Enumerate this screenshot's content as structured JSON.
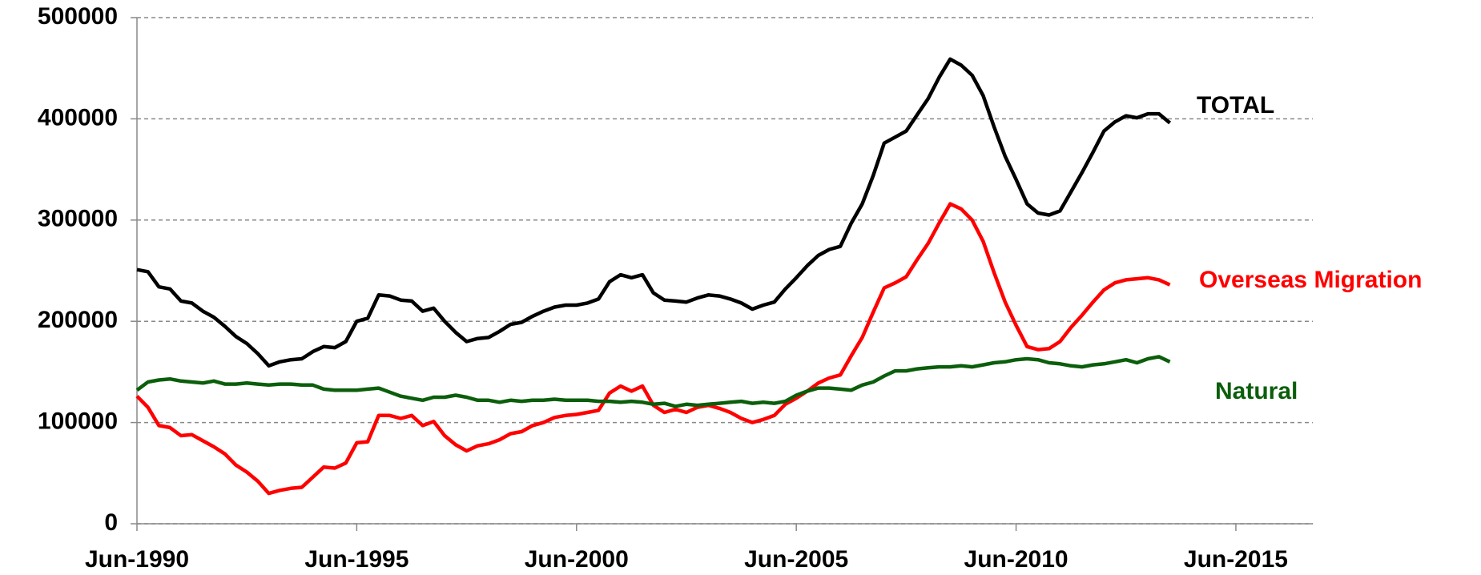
{
  "chart_data": {
    "type": "line",
    "x": [
      "Jun-1990",
      "Sep-1990",
      "Dec-1990",
      "Mar-1991",
      "Jun-1991",
      "Sep-1991",
      "Dec-1991",
      "Mar-1992",
      "Jun-1992",
      "Sep-1992",
      "Dec-1992",
      "Mar-1993",
      "Jun-1993",
      "Sep-1993",
      "Dec-1993",
      "Mar-1994",
      "Jun-1994",
      "Sep-1994",
      "Dec-1994",
      "Mar-1995",
      "Jun-1995",
      "Sep-1995",
      "Dec-1995",
      "Mar-1996",
      "Jun-1996",
      "Sep-1996",
      "Dec-1996",
      "Mar-1997",
      "Jun-1997",
      "Sep-1997",
      "Dec-1997",
      "Mar-1998",
      "Jun-1998",
      "Sep-1998",
      "Dec-1998",
      "Mar-1999",
      "Jun-1999",
      "Sep-1999",
      "Dec-1999",
      "Mar-2000",
      "Jun-2000",
      "Sep-2000",
      "Dec-2000",
      "Mar-2001",
      "Jun-2001",
      "Sep-2001",
      "Dec-2001",
      "Mar-2002",
      "Jun-2002",
      "Sep-2002",
      "Dec-2002",
      "Mar-2003",
      "Jun-2003",
      "Sep-2003",
      "Dec-2003",
      "Mar-2004",
      "Jun-2004",
      "Sep-2004",
      "Dec-2004",
      "Mar-2005",
      "Jun-2005",
      "Sep-2005",
      "Dec-2005",
      "Mar-2006",
      "Jun-2006",
      "Sep-2006",
      "Dec-2006",
      "Mar-2007",
      "Jun-2007",
      "Sep-2007",
      "Dec-2007",
      "Mar-2008",
      "Jun-2008",
      "Sep-2008",
      "Dec-2008",
      "Mar-2009",
      "Jun-2009",
      "Sep-2009",
      "Dec-2009",
      "Mar-2010",
      "Jun-2010",
      "Sep-2010",
      "Dec-2010",
      "Mar-2011",
      "Jun-2011",
      "Sep-2011",
      "Dec-2011",
      "Mar-2012",
      "Jun-2012",
      "Sep-2012",
      "Dec-2012",
      "Mar-2013",
      "Jun-2013",
      "Sep-2013",
      "Dec-2013"
    ],
    "series": [
      {
        "name": "TOTAL",
        "color": "#000000",
        "values": [
          251000,
          249000,
          234000,
          232000,
          220000,
          218000,
          210000,
          204000,
          195000,
          185000,
          178000,
          168000,
          156000,
          160000,
          162000,
          163000,
          170000,
          175000,
          174000,
          180000,
          200000,
          203000,
          226000,
          225000,
          221000,
          220000,
          210000,
          213000,
          200000,
          189000,
          180000,
          183000,
          184000,
          190000,
          197000,
          199000,
          205000,
          210000,
          214000,
          216000,
          216000,
          218000,
          222000,
          239000,
          246000,
          243000,
          246000,
          228000,
          221000,
          220000,
          219000,
          223000,
          226000,
          225000,
          222000,
          218000,
          212000,
          216000,
          219000,
          232000,
          243000,
          255000,
          265000,
          271000,
          274000,
          297000,
          316000,
          344000,
          376000,
          382000,
          388000,
          404000,
          420000,
          441000,
          459000,
          453000,
          443000,
          423000,
          392000,
          363000,
          340000,
          316000,
          307000,
          305000,
          309000,
          328000,
          347000,
          367000,
          388000,
          397000,
          403000,
          401000,
          405000,
          405000,
          396000
        ]
      },
      {
        "name": "Overseas Migration",
        "color": "#ff0000",
        "values": [
          126000,
          115000,
          97000,
          95000,
          87000,
          88000,
          82000,
          76000,
          69000,
          58000,
          51000,
          42000,
          30000,
          33000,
          35000,
          36000,
          46000,
          56000,
          55000,
          60000,
          80000,
          81000,
          107000,
          107000,
          104000,
          107000,
          97000,
          101000,
          87000,
          78000,
          72000,
          77000,
          79000,
          83000,
          89000,
          91000,
          97000,
          100000,
          105000,
          107000,
          108000,
          110000,
          112000,
          129000,
          136000,
          131000,
          136000,
          117000,
          110000,
          113000,
          110000,
          115000,
          117000,
          114000,
          110000,
          104000,
          100000,
          103000,
          107000,
          118000,
          124000,
          131000,
          139000,
          144000,
          147000,
          166000,
          184000,
          209000,
          233000,
          238000,
          244000,
          261000,
          277000,
          297000,
          316000,
          311000,
          300000,
          279000,
          248000,
          219000,
          196000,
          175000,
          172000,
          173000,
          180000,
          194000,
          206000,
          219000,
          231000,
          238000,
          241000,
          242000,
          243000,
          241000,
          236000
        ]
      },
      {
        "name": "Natural",
        "color": "#0b5e0b",
        "values": [
          132000,
          140000,
          142000,
          143000,
          141000,
          140000,
          139000,
          141000,
          138000,
          138000,
          139000,
          138000,
          137000,
          138000,
          138000,
          137000,
          137000,
          133000,
          132000,
          132000,
          132000,
          133000,
          134000,
          130000,
          126000,
          124000,
          122000,
          125000,
          125000,
          127000,
          125000,
          122000,
          122000,
          120000,
          122000,
          121000,
          122000,
          122000,
          123000,
          122000,
          122000,
          122000,
          121000,
          121000,
          120000,
          121000,
          120000,
          118000,
          119000,
          116000,
          118000,
          117000,
          118000,
          119000,
          120000,
          121000,
          119000,
          120000,
          119000,
          121000,
          127000,
          131000,
          134000,
          134000,
          133000,
          132000,
          137000,
          140000,
          146000,
          151000,
          151000,
          153000,
          154000,
          155000,
          155000,
          156000,
          155000,
          157000,
          159000,
          160000,
          162000,
          163000,
          162000,
          159000,
          158000,
          156000,
          155000,
          157000,
          158000,
          160000,
          162000,
          159000,
          163000,
          165000,
          160000
        ]
      }
    ],
    "xlim": [
      "Jun-1990",
      "Mar-2017"
    ],
    "xticks": [
      "Jun-1990",
      "Jun-1995",
      "Jun-2000",
      "Jun-2005",
      "Jun-2010",
      "Jun-2015"
    ],
    "ylim": [
      0,
      500000
    ],
    "yticks": [
      0,
      100000,
      200000,
      300000,
      400000,
      500000
    ],
    "grid": true
  }
}
